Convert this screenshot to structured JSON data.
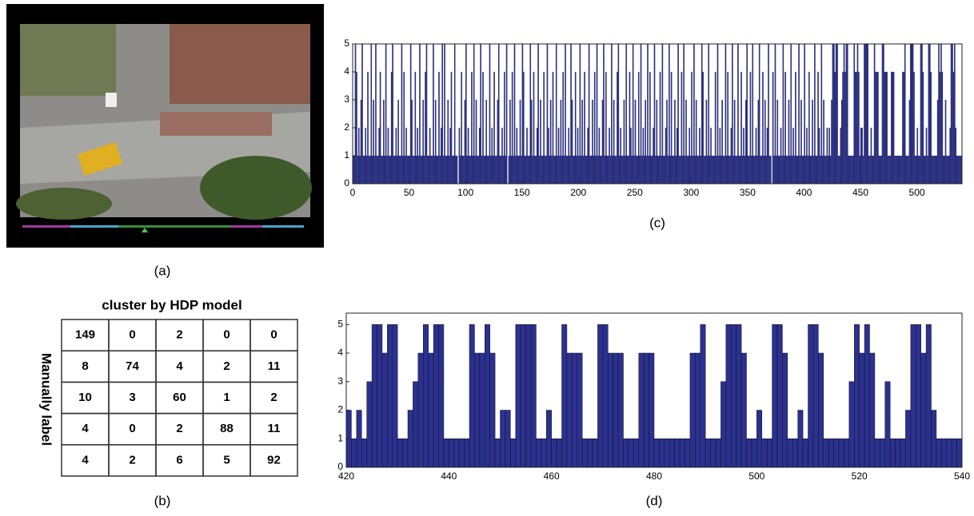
{
  "panel_a": {
    "caption": "(a)"
  },
  "table": {
    "title": "cluster by HDP model",
    "row_label": "Manually label",
    "caption": "(b)",
    "rows": [
      [
        149,
        0,
        2,
        0,
        0
      ],
      [
        8,
        74,
        4,
        2,
        11
      ],
      [
        10,
        3,
        60,
        1,
        2
      ],
      [
        4,
        0,
        2,
        88,
        11
      ],
      [
        4,
        2,
        6,
        5,
        92
      ]
    ]
  },
  "chart_data": [
    {
      "type": "bar",
      "caption": "(c)",
      "color": "#2b3190",
      "xlim": [
        0,
        540
      ],
      "xticks": [
        0,
        50,
        100,
        150,
        200,
        250,
        300,
        350,
        400,
        450,
        500
      ],
      "ylim": [
        0,
        5
      ],
      "yticks": [
        0,
        1,
        2,
        3,
        4,
        5
      ],
      "values": [
        1,
        1,
        5,
        4,
        1,
        2,
        1,
        3,
        5,
        1,
        1,
        2,
        1,
        4,
        1,
        1,
        5,
        1,
        3,
        1,
        5,
        1,
        1,
        2,
        4,
        1,
        1,
        3,
        1,
        5,
        1,
        2,
        1,
        1,
        4,
        5,
        1,
        1,
        2,
        1,
        3,
        1,
        1,
        5,
        1,
        4,
        1,
        2,
        1,
        1,
        1,
        5,
        3,
        1,
        1,
        4,
        1,
        2,
        1,
        5,
        1,
        1,
        3,
        1,
        4,
        5,
        1,
        1,
        2,
        1,
        1,
        5,
        1,
        3,
        1,
        1,
        4,
        1,
        2,
        5,
        1,
        5,
        1,
        1,
        3,
        1,
        2,
        4,
        1,
        1,
        5,
        1,
        1,
        0,
        2,
        1,
        4,
        1,
        1,
        3,
        5,
        1,
        2,
        1,
        1,
        4,
        1,
        5,
        1,
        3,
        1,
        1,
        2,
        5,
        1,
        4,
        1,
        1,
        3,
        1,
        1,
        5,
        1,
        2,
        1,
        4,
        1,
        1,
        3,
        5,
        1,
        1,
        2,
        1,
        4,
        1,
        5,
        0,
        1,
        3,
        1,
        4,
        1,
        5,
        1,
        2,
        1,
        1,
        3,
        1,
        5,
        4,
        1,
        1,
        2,
        1,
        1,
        5,
        3,
        1,
        4,
        1,
        1,
        2,
        5,
        1,
        3,
        1,
        1,
        4,
        1,
        1,
        5,
        2,
        1,
        3,
        1,
        4,
        1,
        1,
        5,
        1,
        2,
        1,
        3,
        1,
        4,
        1,
        5,
        1,
        1,
        2,
        1,
        5,
        3,
        1,
        1,
        4,
        1,
        2,
        1,
        5,
        1,
        3,
        1,
        4,
        1,
        1,
        2,
        5,
        1,
        1,
        3,
        1,
        4,
        1,
        5,
        1,
        2,
        1,
        1,
        3,
        5,
        1,
        4,
        1,
        1,
        2,
        1,
        5,
        1,
        3,
        1,
        1,
        4,
        5,
        1,
        2,
        1,
        1,
        3,
        1,
        5,
        1,
        1,
        4,
        2,
        1,
        5,
        1,
        3,
        1,
        1,
        4,
        1,
        5,
        1,
        2,
        1,
        3,
        1,
        5,
        1,
        4,
        1,
        1,
        2,
        5,
        1,
        3,
        1,
        1,
        4,
        1,
        5,
        1,
        1,
        2,
        3,
        1,
        5,
        1,
        4,
        1,
        1,
        3,
        1,
        2,
        5,
        1,
        1,
        4,
        1,
        5,
        1,
        3,
        1,
        1,
        2,
        1,
        4,
        1,
        5,
        1,
        3,
        1,
        1,
        2,
        1,
        5,
        4,
        1,
        1,
        3,
        1,
        5,
        1,
        2,
        1,
        1,
        1,
        4,
        1,
        5,
        1,
        2,
        1,
        3,
        1,
        1,
        5,
        1,
        4,
        1,
        1,
        2,
        5,
        1,
        3,
        1,
        1,
        5,
        1,
        1,
        4,
        1,
        2,
        1,
        3,
        5,
        1,
        1,
        4,
        1,
        5,
        1,
        1,
        2,
        1,
        3,
        5,
        1,
        1,
        4,
        1,
        3,
        1,
        2,
        5,
        1,
        1,
        0,
        4,
        1,
        5,
        1,
        3,
        1,
        1,
        2,
        1,
        5,
        1,
        4,
        1,
        1,
        3,
        1,
        5,
        1,
        2,
        1,
        4,
        1,
        1,
        5,
        1,
        3,
        1,
        1,
        5,
        1,
        2,
        1,
        4,
        1,
        1,
        3,
        1,
        5,
        1,
        1,
        4,
        2,
        1,
        5,
        1,
        3,
        1,
        1,
        2,
        1,
        2,
        1,
        3,
        5,
        5,
        4,
        5,
        5,
        1,
        1,
        2,
        3,
        4,
        5,
        4,
        5,
        5,
        1,
        1,
        1,
        1,
        1,
        5,
        4,
        4,
        5,
        4,
        1,
        2,
        2,
        1,
        5,
        5,
        5,
        5,
        1,
        1,
        2,
        1,
        1,
        5,
        4,
        4,
        4,
        1,
        1,
        1,
        5,
        5,
        4,
        4,
        4,
        1,
        1,
        1,
        4,
        4,
        4,
        1,
        1,
        1,
        1,
        1,
        1,
        1,
        4,
        4,
        5,
        1,
        1,
        1,
        3,
        5,
        5,
        5,
        4,
        1,
        1,
        2,
        1,
        1,
        5,
        5,
        4,
        1,
        1,
        2,
        1,
        5,
        5,
        4,
        1,
        1,
        1,
        1,
        1,
        3,
        5,
        4,
        5,
        4,
        1,
        1,
        3,
        1,
        1,
        1,
        2,
        5,
        5,
        4,
        5,
        2,
        1,
        1,
        1,
        1,
        1
      ]
    },
    {
      "type": "bar",
      "caption": "(d)",
      "color": "#2b3190",
      "xlim": [
        420,
        540
      ],
      "xticks": [
        420,
        440,
        460,
        480,
        500,
        520,
        540
      ],
      "ylim": [
        0,
        5.4
      ],
      "yticks": [
        0,
        1,
        2,
        3,
        4,
        5
      ],
      "values": [
        2,
        1,
        2,
        1,
        3,
        5,
        5,
        4,
        5,
        5,
        1,
        1,
        2,
        3,
        4,
        5,
        4,
        5,
        5,
        1,
        1,
        1,
        1,
        1,
        5,
        4,
        4,
        5,
        4,
        1,
        2,
        2,
        1,
        5,
        5,
        5,
        5,
        1,
        1,
        2,
        1,
        1,
        5,
        4,
        4,
        4,
        1,
        1,
        1,
        5,
        5,
        4,
        4,
        4,
        1,
        1,
        1,
        4,
        4,
        4,
        1,
        1,
        1,
        1,
        1,
        1,
        1,
        4,
        4,
        5,
        1,
        1,
        1,
        3,
        5,
        5,
        5,
        4,
        1,
        1,
        2,
        1,
        1,
        5,
        5,
        4,
        1,
        1,
        2,
        1,
        5,
        5,
        4,
        1,
        1,
        1,
        1,
        1,
        3,
        5,
        4,
        5,
        4,
        1,
        1,
        3,
        1,
        1,
        1,
        2,
        5,
        5,
        4,
        5,
        2,
        1,
        1,
        1,
        1,
        1
      ]
    }
  ]
}
